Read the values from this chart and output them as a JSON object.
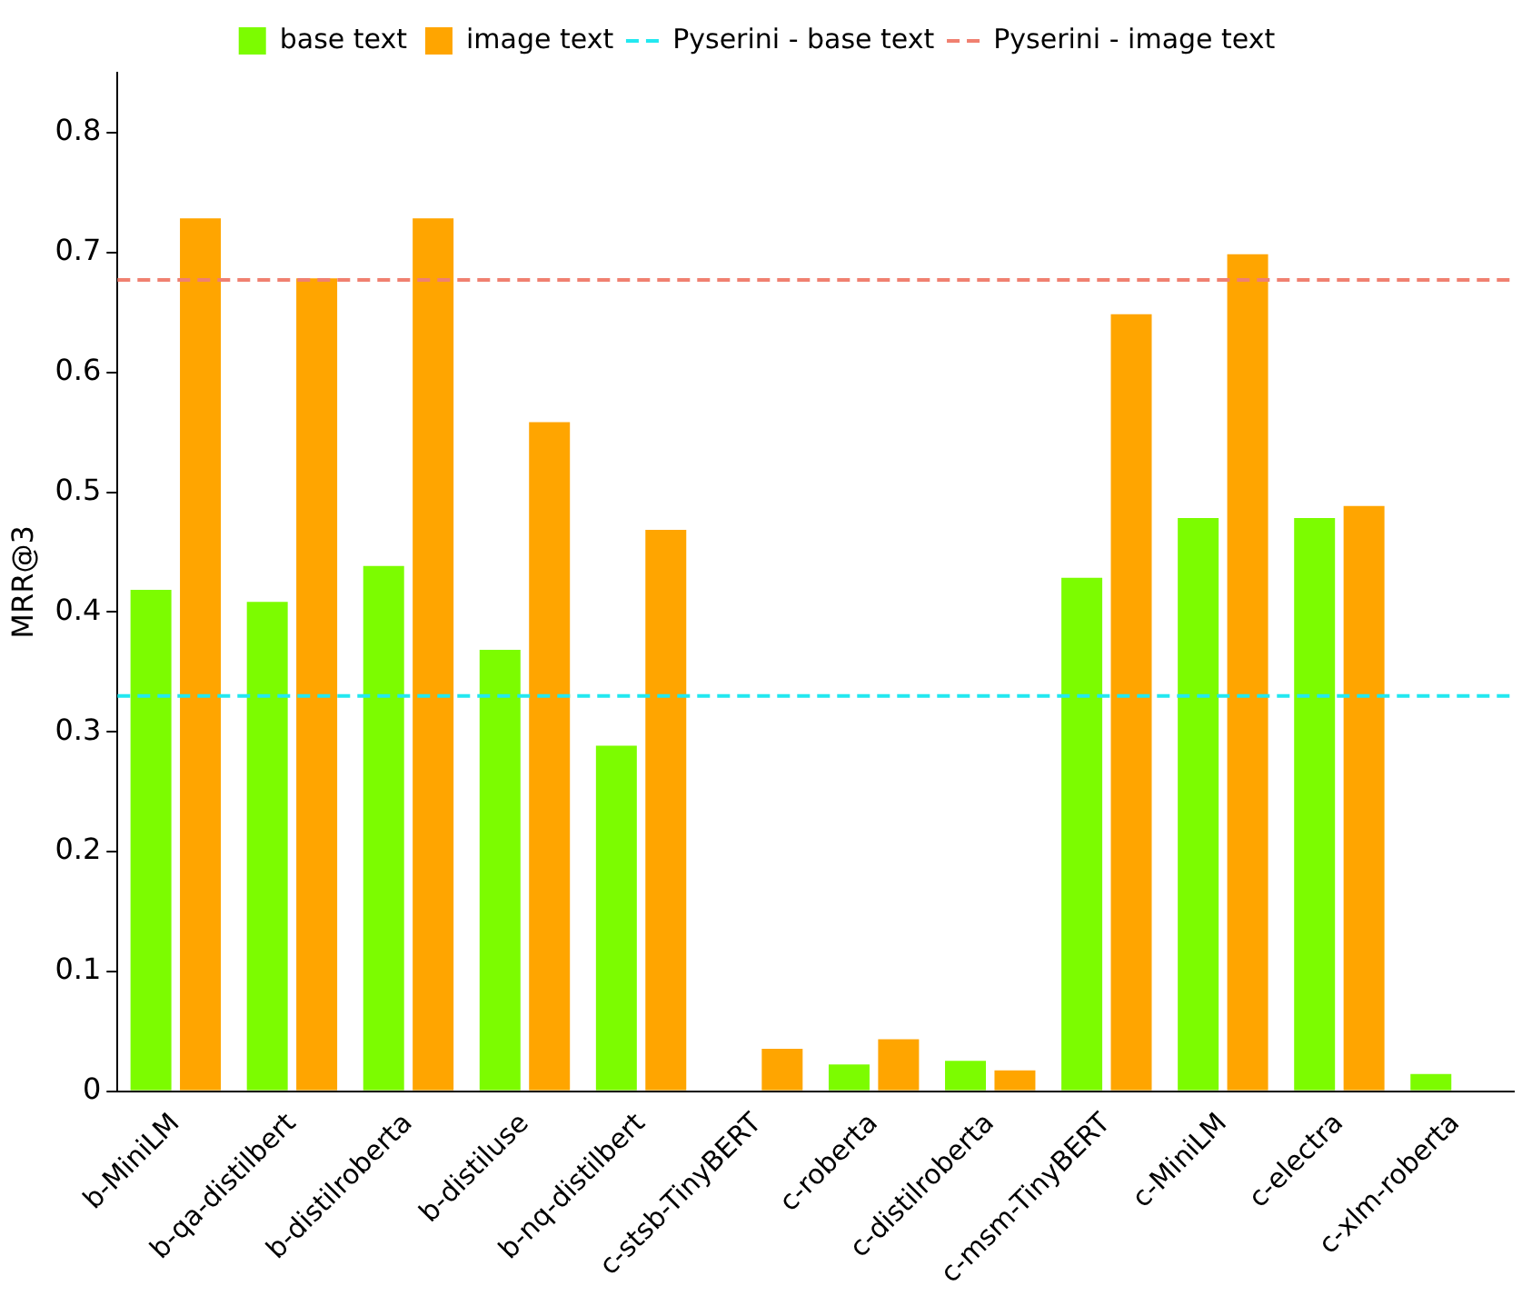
{
  "chart_data": {
    "type": "bar",
    "ylabel": "MRR@3",
    "categories": [
      "b-MiniLM",
      "b-qa-distilbert",
      "b-distilroberta",
      "b-distiluse",
      "b-nq-distilbert",
      "c-stsb-TinyBERT",
      "c-roberta",
      "c-distilroberta",
      "c-msm-TinyBERT",
      "c-MiniLM",
      "c-electra",
      "c-xlm-roberta"
    ],
    "series": [
      {
        "name": "base text",
        "color": "#7cfc00",
        "values": [
          0.42,
          0.41,
          0.44,
          0.37,
          0.29,
          null,
          0.024,
          0.027,
          0.43,
          0.48,
          0.48,
          0.016
        ]
      },
      {
        "name": "image text",
        "color": "#ffa500",
        "values": [
          0.73,
          0.68,
          0.73,
          0.56,
          0.47,
          0.037,
          0.045,
          0.019,
          0.65,
          0.7,
          0.49,
          null
        ]
      }
    ],
    "ref_lines": [
      {
        "axis": "y",
        "value": 0.33,
        "label": "Pyserini - base text",
        "color": "#22e8f0",
        "line_style": "dashed"
      },
      {
        "axis": "y",
        "value": 0.677,
        "label": "Pyserini - image text",
        "color": "#f08070",
        "line_style": "dashed"
      }
    ],
    "ylim": [
      0,
      0.85
    ],
    "yticks": [
      0,
      0.1,
      0.2,
      0.3,
      0.4,
      0.5,
      0.6,
      0.7,
      0.8
    ],
    "grid": false,
    "legend": "top"
  }
}
